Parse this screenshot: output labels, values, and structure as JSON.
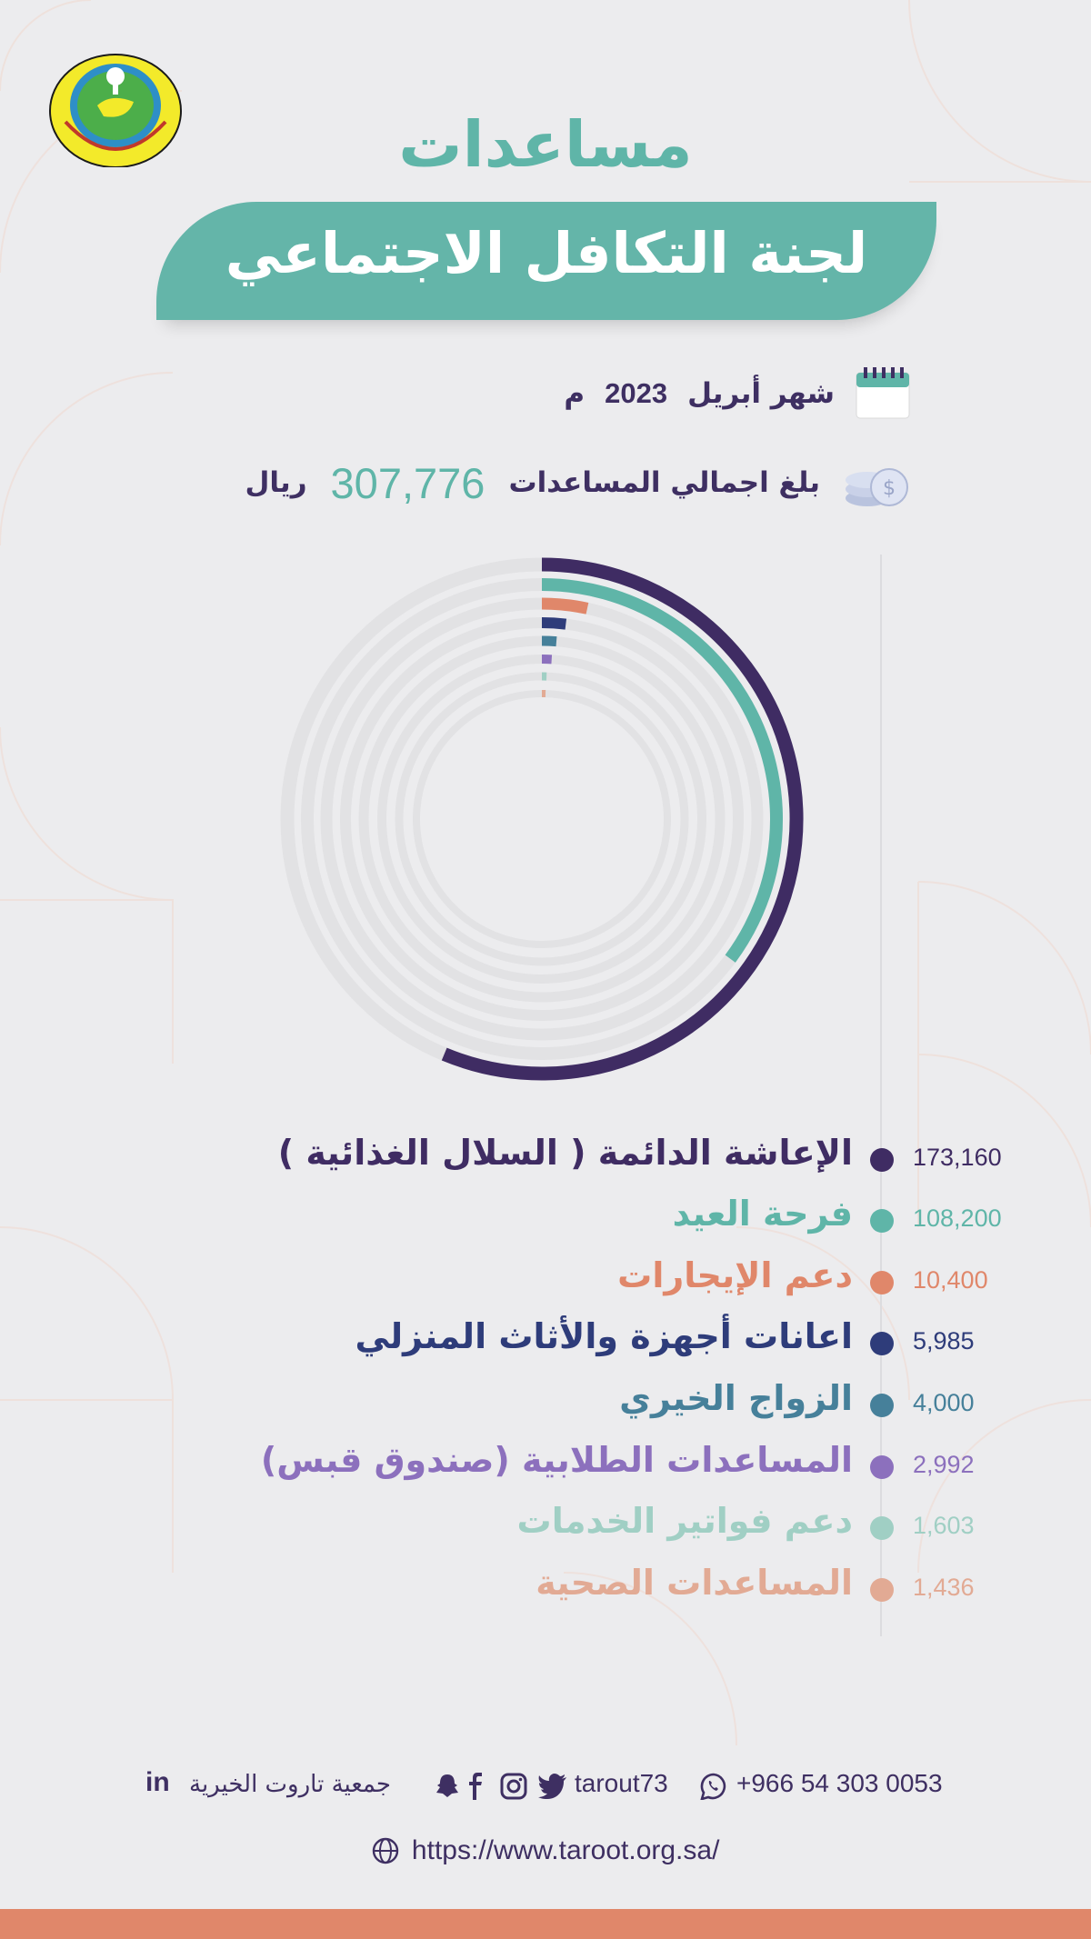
{
  "header": {
    "title_line1": "مساعدات",
    "title_line2": "لجنة التكافل الاجتماعي"
  },
  "info": {
    "month_label": "شهر أبريل",
    "year": "2023",
    "year_suffix": "م",
    "total_prefix": "بلغ اجمالي المساعدات",
    "total_value": "307,776",
    "total_currency": "ريال"
  },
  "chart_data": {
    "type": "radial-bar",
    "total": 307776,
    "categories": [
      "الإعاشة الدائمة ( السلال الغذائية )",
      "فرحة العيد",
      "دعم الإيجارات",
      "اعانات أجهزة والأثاث المنزلي",
      "الزواج الخيري",
      "المساعدات الطلابية (صندوق قبس)",
      "دعم فواتير الخدمات",
      "المساعدات الصحية"
    ],
    "values": [
      173160,
      108200,
      10400,
      5985,
      4000,
      2992,
      1603,
      1436
    ],
    "value_labels": [
      "173,160",
      "108,200",
      "10,400",
      "5,985",
      "4,000",
      "2,992",
      "1,603",
      "1,436"
    ],
    "colors": [
      "#3f2c63",
      "#5fb5a8",
      "#e0876a",
      "#2e3c7a",
      "#46809a",
      "#8c70bd",
      "#a0cfc4",
      "#e2aa94"
    ],
    "track_color": "#e2e2e4"
  },
  "footer": {
    "phone": "+966 54 303 0053",
    "handle": "tarout73",
    "org_name": "جمعية تاروت الخيرية",
    "website": "https://www.taroot.org.sa/",
    "icons": [
      "whatsapp-icon",
      "twitter-icon",
      "instagram-icon",
      "facebook-icon",
      "snapchat-icon",
      "linkedin-icon",
      "globe-icon"
    ]
  },
  "colors": {
    "primary_teal": "#5fb5a8",
    "primary_purple": "#3e2f62",
    "accent_orange": "#e0876a",
    "background": "#ececee"
  }
}
